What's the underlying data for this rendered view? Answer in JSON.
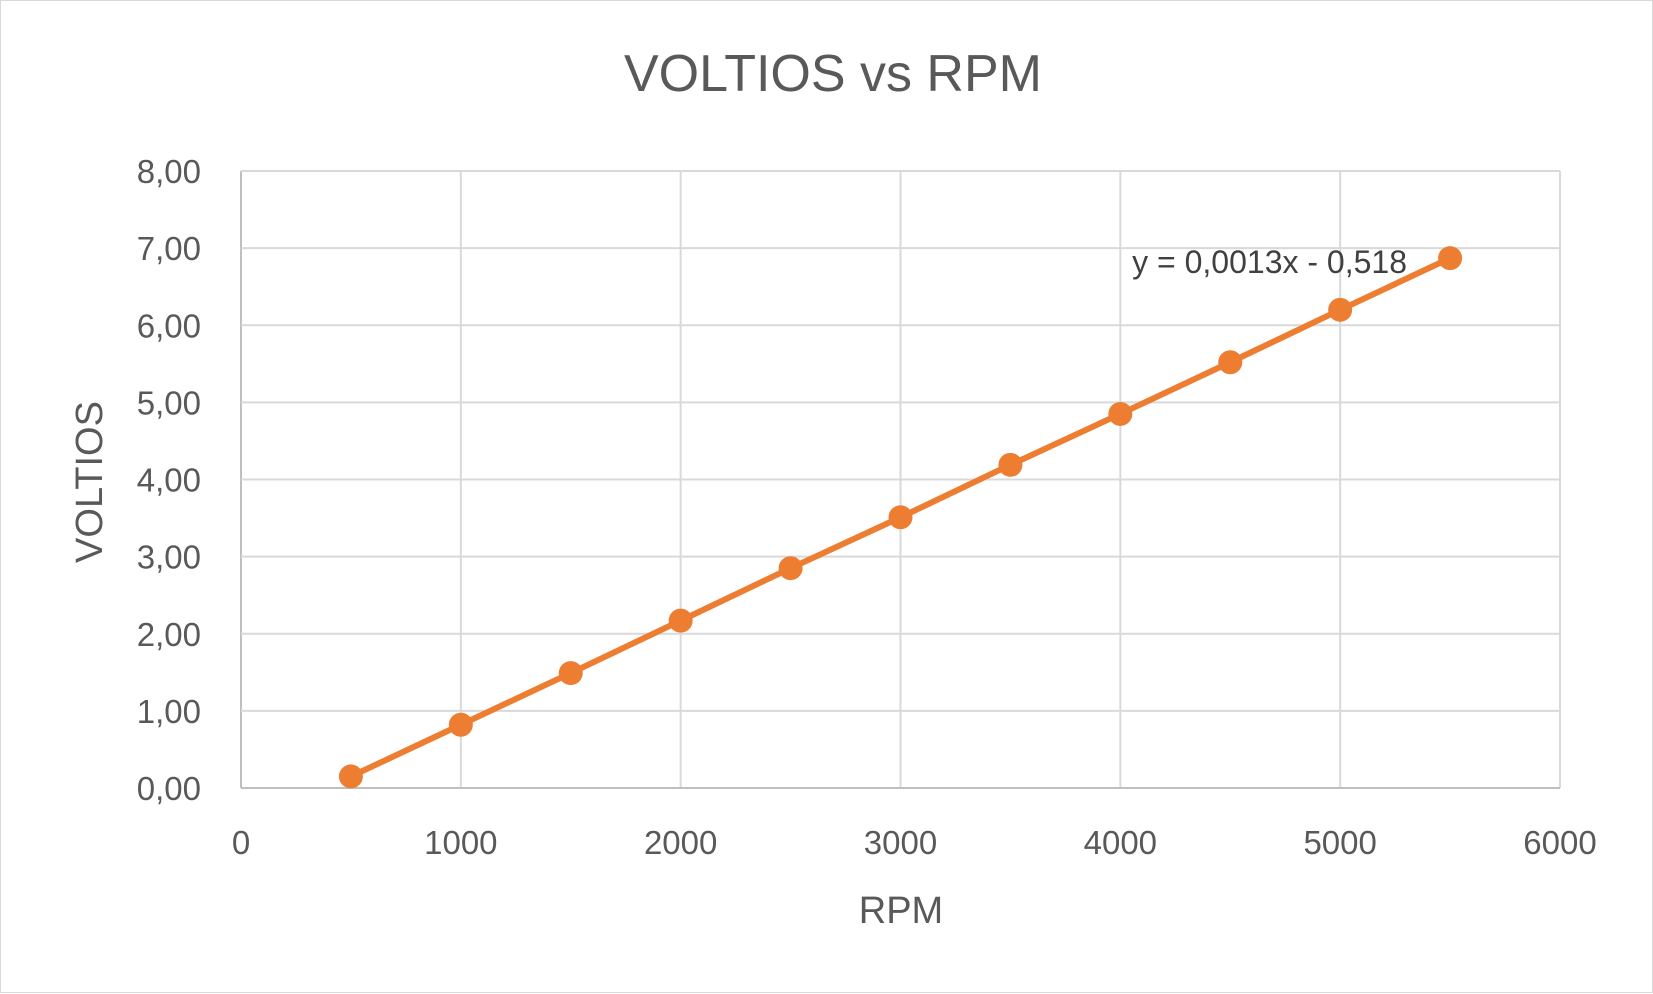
{
  "chart_data": {
    "type": "scatter",
    "title": "VOLTIOS vs RPM",
    "xlabel": "RPM",
    "ylabel": "VOLTIOS",
    "xlim": [
      0,
      6000
    ],
    "ylim": [
      0,
      8
    ],
    "x_ticks": [
      "0",
      "1000",
      "2000",
      "3000",
      "4000",
      "5000",
      "6000"
    ],
    "y_ticks": [
      "0,00",
      "1,00",
      "2,00",
      "3,00",
      "4,00",
      "5,00",
      "6,00",
      "7,00",
      "8,00"
    ],
    "grid": true,
    "legend": "none",
    "series": [
      {
        "x": [
          500,
          1000,
          1500,
          2000,
          2500,
          3000,
          3500,
          4000,
          4500,
          5000,
          5500
        ],
        "y": [
          0.15,
          0.82,
          1.49,
          2.17,
          2.85,
          3.51,
          4.19,
          4.85,
          5.52,
          6.2,
          6.87
        ],
        "color": "#ed7d31"
      }
    ],
    "trendline": {
      "type": "linear",
      "slope": 0.0013,
      "intercept": -0.518,
      "equation_label": "y = 0,0013x - 0,518"
    }
  }
}
